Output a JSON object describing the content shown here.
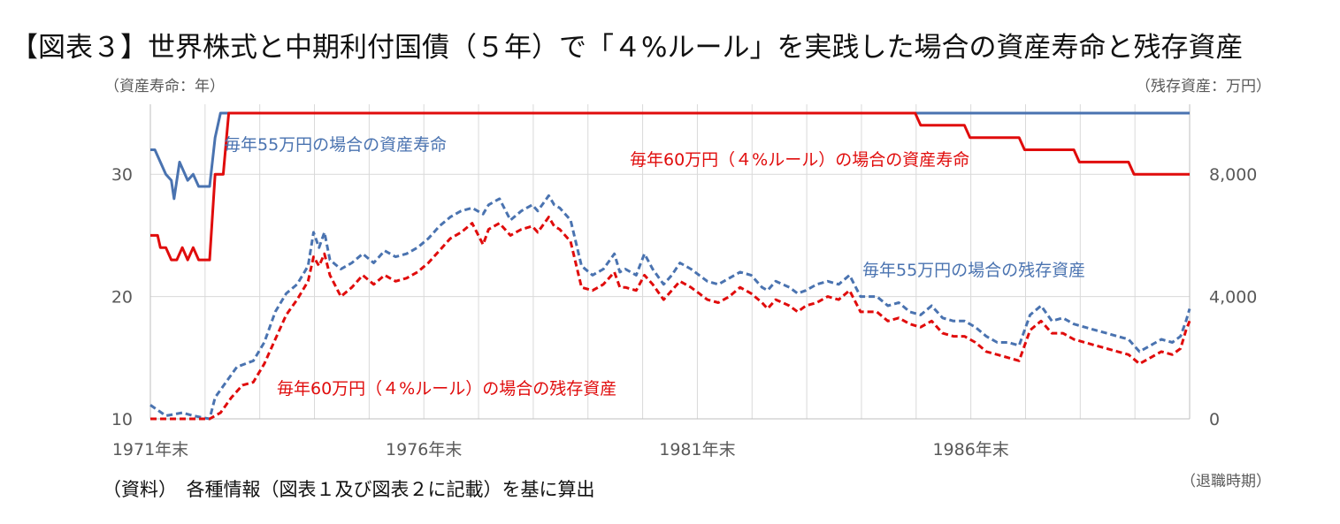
{
  "title": "【図表３】世界株式と中期利付国債（５年）で「４%ルール」を実践した場合の資産寿命と残存資産",
  "left_axis_title": "（資産寿命：年）",
  "right_axis_title": "（残存資産：万円）",
  "source_note": "（資料）　各種情報（図表１及び図表２に記載）を基に算出",
  "x_axis_note": "（退職時期）",
  "colors": {
    "blue": "#4a73b0",
    "red": "#e00c0c",
    "grid": "#d9d9d9",
    "axis_text": "#595959"
  },
  "chart_data": {
    "type": "line",
    "x_start": 1971.917,
    "x_end": 1990.917,
    "x_tick_labels": [
      {
        "x": 1971.917,
        "label": "1971年末"
      },
      {
        "x": 1976.917,
        "label": "1976年末"
      },
      {
        "x": 1981.917,
        "label": "1981年末"
      },
      {
        "x": 1986.917,
        "label": "1986年末"
      }
    ],
    "left_axis": {
      "min": 10,
      "max": 35,
      "ticks": [
        10,
        20,
        30
      ]
    },
    "right_axis": {
      "min": 0,
      "max": 10000,
      "ticks": [
        {
          "v": 0,
          "label": "0"
        },
        {
          "v": 4000,
          "label": "4,000"
        },
        {
          "v": 8000,
          "label": "8,000"
        }
      ]
    },
    "series": [
      {
        "name": "毎年55万円の場合の資産寿命",
        "axis": "left",
        "style": "solid",
        "color": "#4a73b0",
        "points": [
          [
            1971.917,
            32
          ],
          [
            1972.0,
            32
          ],
          [
            1972.1,
            31
          ],
          [
            1972.2,
            30
          ],
          [
            1972.3,
            29.5
          ],
          [
            1972.35,
            28
          ],
          [
            1972.45,
            31
          ],
          [
            1972.6,
            29.5
          ],
          [
            1972.7,
            30
          ],
          [
            1972.8,
            29
          ],
          [
            1973.0,
            29
          ],
          [
            1973.1,
            33
          ],
          [
            1973.2,
            35
          ],
          [
            1973.4,
            35
          ],
          [
            1990.917,
            35
          ]
        ]
      },
      {
        "name": "毎年60万円（４%ルール）の場合の資産寿命",
        "axis": "left",
        "style": "solid",
        "color": "#e00c0c",
        "points": [
          [
            1971.917,
            25
          ],
          [
            1972.05,
            25
          ],
          [
            1972.1,
            24
          ],
          [
            1972.2,
            24
          ],
          [
            1972.3,
            23
          ],
          [
            1972.4,
            23
          ],
          [
            1972.5,
            24
          ],
          [
            1972.6,
            23
          ],
          [
            1972.7,
            24
          ],
          [
            1972.8,
            23
          ],
          [
            1973.0,
            23
          ],
          [
            1973.1,
            30
          ],
          [
            1973.25,
            30
          ],
          [
            1973.35,
            35
          ],
          [
            1985.9,
            35
          ],
          [
            1986.0,
            34
          ],
          [
            1986.8,
            34
          ],
          [
            1986.9,
            33
          ],
          [
            1987.8,
            33
          ],
          [
            1987.9,
            32
          ],
          [
            1988.8,
            32
          ],
          [
            1988.9,
            31
          ],
          [
            1989.8,
            31
          ],
          [
            1989.9,
            30
          ],
          [
            1990.917,
            30
          ]
        ]
      },
      {
        "name": "毎年55万円の場合の残存資産",
        "axis": "right",
        "style": "dashed",
        "color": "#4a73b0",
        "points": [
          [
            1971.917,
            450
          ],
          [
            1972.2,
            100
          ],
          [
            1972.5,
            200
          ],
          [
            1972.7,
            100
          ],
          [
            1973.0,
            0
          ],
          [
            1973.1,
            700
          ],
          [
            1973.3,
            1200
          ],
          [
            1973.5,
            1700
          ],
          [
            1973.8,
            1900
          ],
          [
            1974.0,
            2500
          ],
          [
            1974.2,
            3500
          ],
          [
            1974.4,
            4100
          ],
          [
            1974.6,
            4400
          ],
          [
            1974.8,
            5000
          ],
          [
            1974.9,
            6100
          ],
          [
            1975.0,
            5600
          ],
          [
            1975.1,
            6100
          ],
          [
            1975.2,
            5200
          ],
          [
            1975.4,
            4900
          ],
          [
            1975.6,
            5100
          ],
          [
            1975.8,
            5400
          ],
          [
            1976.0,
            5100
          ],
          [
            1976.2,
            5500
          ],
          [
            1976.4,
            5300
          ],
          [
            1976.6,
            5400
          ],
          [
            1976.8,
            5600
          ],
          [
            1977.0,
            5900
          ],
          [
            1977.2,
            6300
          ],
          [
            1977.4,
            6600
          ],
          [
            1977.6,
            6800
          ],
          [
            1977.8,
            6900
          ],
          [
            1978.0,
            6700
          ],
          [
            1978.1,
            7000
          ],
          [
            1978.3,
            7200
          ],
          [
            1978.5,
            6500
          ],
          [
            1978.7,
            6800
          ],
          [
            1978.9,
            7000
          ],
          [
            1979.0,
            6800
          ],
          [
            1979.2,
            7300
          ],
          [
            1979.3,
            7000
          ],
          [
            1979.4,
            6900
          ],
          [
            1979.6,
            6500
          ],
          [
            1979.8,
            5000
          ],
          [
            1980.0,
            4700
          ],
          [
            1980.2,
            4900
          ],
          [
            1980.4,
            5400
          ],
          [
            1980.5,
            4800
          ],
          [
            1980.6,
            4900
          ],
          [
            1980.8,
            4700
          ],
          [
            1980.95,
            5400
          ],
          [
            1981.1,
            4900
          ],
          [
            1981.3,
            4400
          ],
          [
            1981.45,
            4700
          ],
          [
            1981.6,
            5100
          ],
          [
            1981.8,
            4900
          ],
          [
            1981.95,
            4700
          ],
          [
            1982.1,
            4500
          ],
          [
            1982.3,
            4400
          ],
          [
            1982.5,
            4600
          ],
          [
            1982.7,
            4800
          ],
          [
            1982.9,
            4700
          ],
          [
            1983.1,
            4300
          ],
          [
            1983.2,
            4200
          ],
          [
            1983.35,
            4500
          ],
          [
            1983.6,
            4300
          ],
          [
            1983.75,
            4100
          ],
          [
            1983.9,
            4200
          ],
          [
            1984.1,
            4400
          ],
          [
            1984.3,
            4500
          ],
          [
            1984.5,
            4400
          ],
          [
            1984.7,
            4700
          ],
          [
            1984.9,
            4000
          ],
          [
            1985.2,
            4000
          ],
          [
            1985.4,
            3700
          ],
          [
            1985.6,
            3800
          ],
          [
            1985.8,
            3500
          ],
          [
            1986.0,
            3400
          ],
          [
            1986.2,
            3700
          ],
          [
            1986.4,
            3300
          ],
          [
            1986.6,
            3200
          ],
          [
            1986.8,
            3200
          ],
          [
            1987.0,
            3000
          ],
          [
            1987.2,
            2700
          ],
          [
            1987.4,
            2500
          ],
          [
            1987.6,
            2500
          ],
          [
            1987.8,
            2400
          ],
          [
            1988.0,
            3400
          ],
          [
            1988.2,
            3700
          ],
          [
            1988.4,
            3200
          ],
          [
            1988.6,
            3300
          ],
          [
            1988.8,
            3100
          ],
          [
            1989.0,
            3000
          ],
          [
            1989.2,
            2900
          ],
          [
            1989.4,
            2800
          ],
          [
            1989.6,
            2700
          ],
          [
            1989.8,
            2600
          ],
          [
            1990.0,
            2200
          ],
          [
            1990.2,
            2400
          ],
          [
            1990.4,
            2600
          ],
          [
            1990.6,
            2500
          ],
          [
            1990.75,
            2700
          ],
          [
            1990.85,
            3200
          ],
          [
            1990.917,
            3600
          ]
        ]
      },
      {
        "name": "毎年60万円（４%ルール）の場合の残存資産",
        "axis": "right",
        "style": "dashed",
        "color": "#e00c0c",
        "points": [
          [
            1971.917,
            0
          ],
          [
            1973.0,
            0
          ],
          [
            1973.2,
            200
          ],
          [
            1973.4,
            700
          ],
          [
            1973.6,
            1100
          ],
          [
            1973.8,
            1200
          ],
          [
            1974.0,
            1800
          ],
          [
            1974.2,
            2600
          ],
          [
            1974.4,
            3400
          ],
          [
            1974.6,
            3900
          ],
          [
            1974.8,
            4500
          ],
          [
            1974.9,
            5300
          ],
          [
            1975.0,
            5000
          ],
          [
            1975.1,
            5400
          ],
          [
            1975.2,
            4700
          ],
          [
            1975.4,
            4000
          ],
          [
            1975.6,
            4300
          ],
          [
            1975.8,
            4700
          ],
          [
            1976.0,
            4400
          ],
          [
            1976.2,
            4700
          ],
          [
            1976.4,
            4500
          ],
          [
            1976.6,
            4600
          ],
          [
            1976.8,
            4800
          ],
          [
            1977.0,
            5100
          ],
          [
            1977.2,
            5500
          ],
          [
            1977.4,
            5900
          ],
          [
            1977.6,
            6100
          ],
          [
            1977.8,
            6400
          ],
          [
            1978.0,
            5700
          ],
          [
            1978.1,
            6200
          ],
          [
            1978.3,
            6400
          ],
          [
            1978.5,
            6000
          ],
          [
            1978.7,
            6200
          ],
          [
            1978.9,
            6300
          ],
          [
            1979.0,
            6100
          ],
          [
            1979.2,
            6600
          ],
          [
            1979.3,
            6300
          ],
          [
            1979.4,
            6200
          ],
          [
            1979.6,
            5800
          ],
          [
            1979.8,
            4300
          ],
          [
            1980.0,
            4200
          ],
          [
            1980.2,
            4400
          ],
          [
            1980.4,
            4800
          ],
          [
            1980.5,
            4300
          ],
          [
            1980.6,
            4300
          ],
          [
            1980.8,
            4200
          ],
          [
            1980.95,
            4700
          ],
          [
            1981.1,
            4400
          ],
          [
            1981.3,
            3900
          ],
          [
            1981.45,
            4200
          ],
          [
            1981.6,
            4500
          ],
          [
            1981.8,
            4300
          ],
          [
            1981.95,
            4100
          ],
          [
            1982.1,
            3900
          ],
          [
            1982.3,
            3800
          ],
          [
            1982.5,
            4000
          ],
          [
            1982.7,
            4300
          ],
          [
            1982.9,
            4100
          ],
          [
            1983.1,
            3800
          ],
          [
            1983.2,
            3600
          ],
          [
            1983.35,
            3900
          ],
          [
            1983.6,
            3700
          ],
          [
            1983.75,
            3500
          ],
          [
            1983.9,
            3700
          ],
          [
            1984.1,
            3800
          ],
          [
            1984.3,
            4000
          ],
          [
            1984.5,
            3900
          ],
          [
            1984.7,
            4200
          ],
          [
            1984.9,
            3500
          ],
          [
            1985.2,
            3500
          ],
          [
            1985.4,
            3200
          ],
          [
            1985.6,
            3300
          ],
          [
            1985.8,
            3100
          ],
          [
            1986.0,
            3000
          ],
          [
            1986.2,
            3200
          ],
          [
            1986.4,
            2800
          ],
          [
            1986.6,
            2700
          ],
          [
            1986.8,
            2700
          ],
          [
            1987.0,
            2500
          ],
          [
            1987.2,
            2200
          ],
          [
            1987.4,
            2100
          ],
          [
            1987.6,
            2000
          ],
          [
            1987.8,
            1900
          ],
          [
            1988.0,
            2900
          ],
          [
            1988.2,
            3200
          ],
          [
            1988.4,
            2800
          ],
          [
            1988.6,
            2800
          ],
          [
            1988.8,
            2600
          ],
          [
            1989.0,
            2500
          ],
          [
            1989.2,
            2400
          ],
          [
            1989.4,
            2300
          ],
          [
            1989.6,
            2200
          ],
          [
            1989.8,
            2100
          ],
          [
            1990.0,
            1800
          ],
          [
            1990.2,
            2000
          ],
          [
            1990.4,
            2200
          ],
          [
            1990.6,
            2100
          ],
          [
            1990.75,
            2300
          ],
          [
            1990.85,
            2900
          ],
          [
            1990.917,
            3200
          ]
        ]
      }
    ],
    "annotations": [
      {
        "text": "毎年55万円の場合の資産寿命",
        "color": "#4a73b0"
      },
      {
        "text": "毎年60万円（４%ルール）の場合の資産寿命",
        "color": "#e00c0c"
      },
      {
        "text": "毎年55万円の場合の残存資産",
        "color": "#4a73b0"
      },
      {
        "text": "毎年60万円（４%ルール）の場合の残存資産",
        "color": "#e00c0c"
      }
    ],
    "grid": true
  }
}
